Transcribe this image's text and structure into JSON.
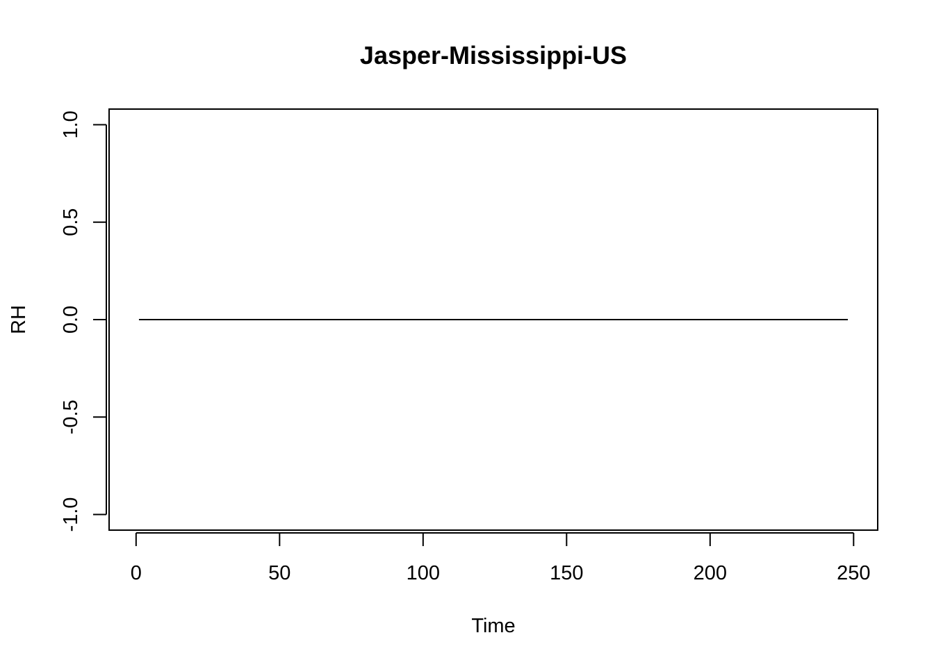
{
  "chart_data": {
    "type": "line",
    "title": "Jasper-Mississippi-US",
    "xlabel": "Time",
    "ylabel": "RH",
    "xlim": [
      -9.4,
      258.4
    ],
    "ylim": [
      -1.08,
      1.08
    ],
    "x_ticks": [
      0,
      50,
      100,
      150,
      200,
      250
    ],
    "x_tick_labels": [
      "0",
      "50",
      "100",
      "150",
      "200",
      "250"
    ],
    "y_ticks": [
      -1.0,
      -0.5,
      0.0,
      0.5,
      1.0
    ],
    "y_tick_labels": [
      "-1.0",
      "-0.5",
      "0.0",
      "0.5",
      "1.0"
    ],
    "grid": false,
    "line_color": "#000000",
    "series": [
      {
        "x": [
          1,
          248
        ],
        "y": [
          0,
          0
        ]
      }
    ]
  }
}
